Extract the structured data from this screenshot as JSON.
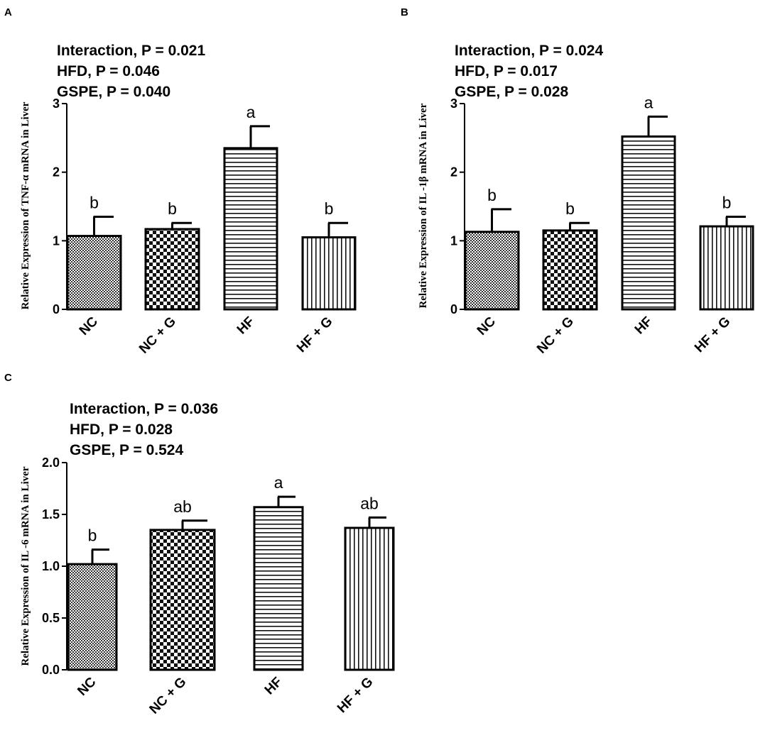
{
  "chart_data": [
    {
      "panel": "A",
      "type": "bar",
      "stats": [
        "Interaction, P = 0.021",
        "HFD, P = 0.046",
        "GSPE, P = 0.040"
      ],
      "ylabel": "Relative Expression of  TNF-α  mRNA in Liver",
      "categories": [
        "NC",
        "NC + G",
        "HF",
        "HF + G"
      ],
      "values": [
        1.07,
        1.17,
        2.35,
        1.05
      ],
      "errors": [
        0.28,
        0.09,
        0.32,
        0.21
      ],
      "letters": [
        "b",
        "b",
        "a",
        "b"
      ],
      "patterns": [
        "fine",
        "checker",
        "hlines",
        "vlines"
      ],
      "ylim": [
        0,
        3
      ],
      "yticks": [
        0,
        1,
        2,
        3
      ],
      "ytick_labels": [
        "0",
        "1",
        "2",
        "3"
      ]
    },
    {
      "panel": "B",
      "type": "bar",
      "stats": [
        "Interaction, P = 0.024",
        "HFD, P = 0.017",
        "GSPE, P = 0.028"
      ],
      "ylabel": "Relative Expression of  IL -1β  mRNA in Liver",
      "categories": [
        "NC",
        "NC + G",
        "HF",
        "HF + G"
      ],
      "values": [
        1.13,
        1.15,
        2.52,
        1.21
      ],
      "errors": [
        0.33,
        0.11,
        0.29,
        0.14
      ],
      "letters": [
        "b",
        "b",
        "a",
        "b"
      ],
      "patterns": [
        "fine",
        "checker",
        "hlines",
        "vlines"
      ],
      "ylim": [
        0,
        3
      ],
      "yticks": [
        0,
        1,
        2,
        3
      ],
      "ytick_labels": [
        "0",
        "1",
        "2",
        "3"
      ]
    },
    {
      "panel": "C",
      "type": "bar",
      "stats": [
        "Interaction, P = 0.036",
        "HFD, P = 0.028",
        "GSPE, P = 0.524"
      ],
      "ylabel": "Relative Expression of  IL -6 mRNA in Liver",
      "categories": [
        "NC",
        "NC + G",
        "HF",
        "HF + G"
      ],
      "values": [
        1.02,
        1.35,
        1.57,
        1.37
      ],
      "errors": [
        0.14,
        0.09,
        0.1,
        0.1
      ],
      "letters": [
        "b",
        "ab",
        "a",
        "ab"
      ],
      "patterns": [
        "fine",
        "checker",
        "hlines",
        "vlines"
      ],
      "ylim": [
        0,
        2
      ],
      "yticks": [
        0,
        0.5,
        1,
        1.5,
        2
      ],
      "ytick_labels": [
        "0.0",
        "0.5",
        "1.0",
        "1.5",
        "2.0"
      ]
    }
  ]
}
